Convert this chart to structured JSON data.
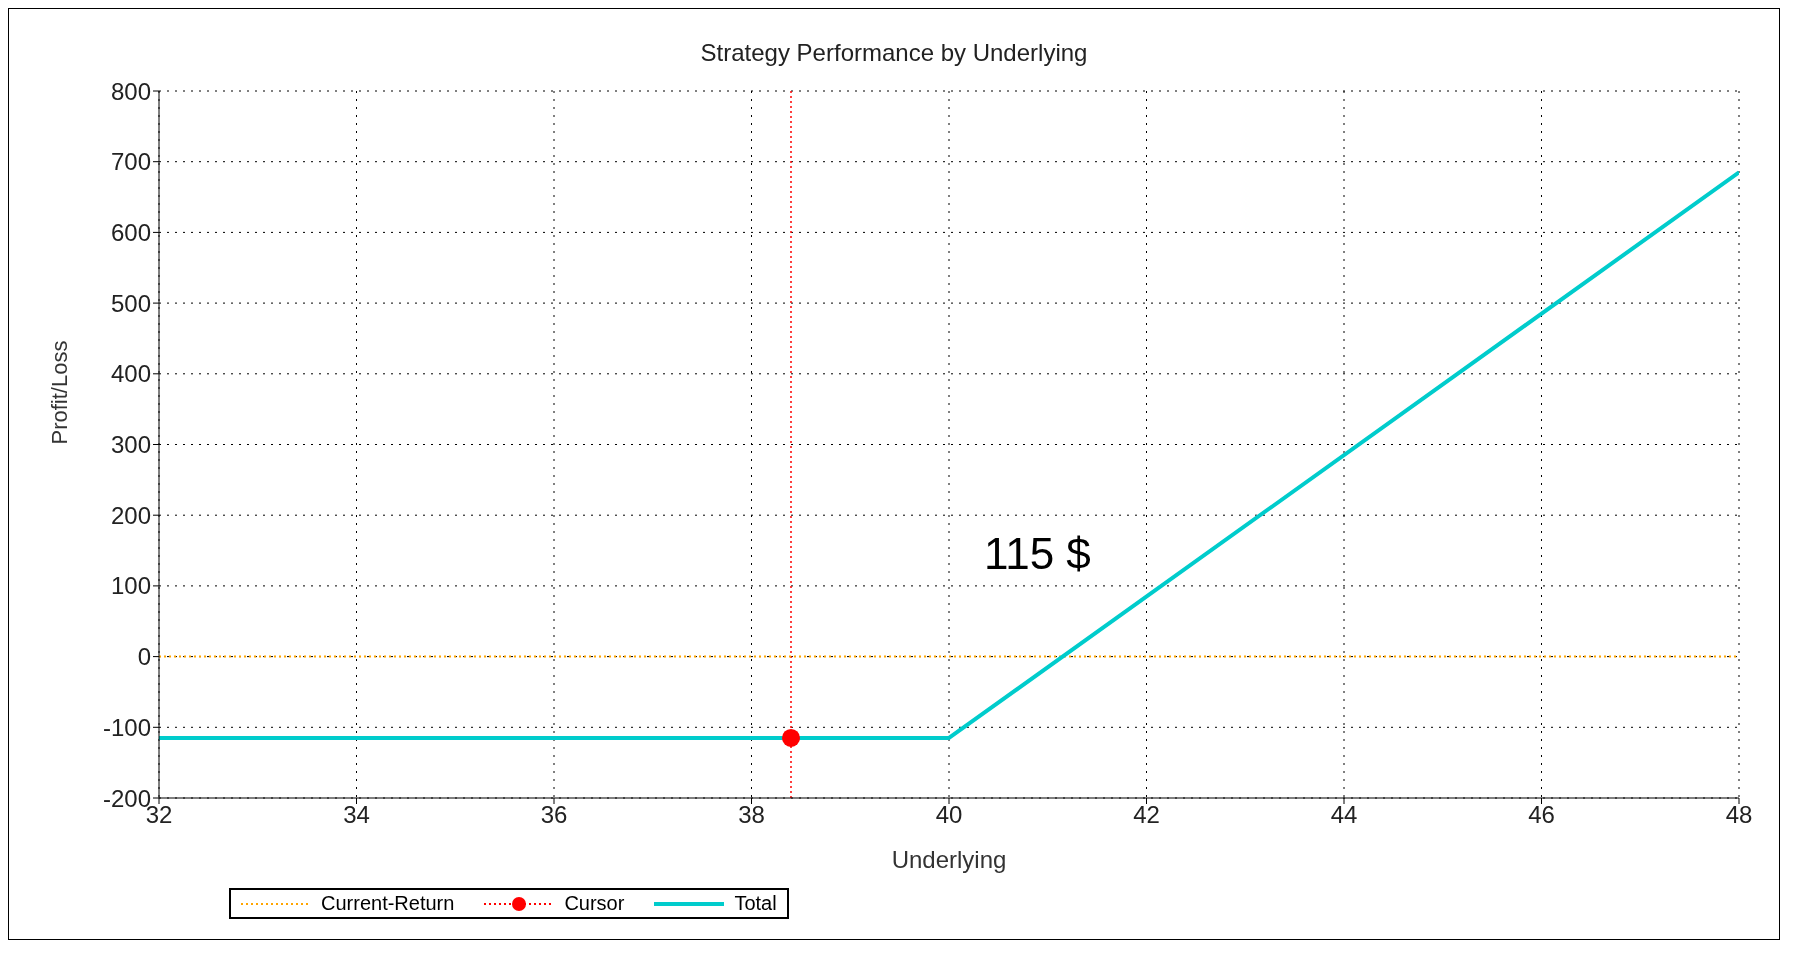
{
  "chart_data": {
    "type": "line",
    "title": "Strategy Performance by Underlying",
    "xlabel": "Underlying",
    "ylabel": "Profit/Loss",
    "xlim": [
      32,
      48
    ],
    "xticks": [
      32,
      34,
      36,
      38,
      40,
      42,
      44,
      46,
      48
    ],
    "ylim": [
      -200,
      800
    ],
    "yticks": [
      -200,
      -100,
      0,
      100,
      200,
      300,
      400,
      500,
      600,
      700,
      800
    ],
    "grid": true,
    "legend": "bottom",
    "marker": "none",
    "series": [
      {
        "name": "Current-Return",
        "color": "#ffa500",
        "line_style": "dotted",
        "x": [
          32,
          48
        ],
        "values": [
          0,
          0
        ]
      },
      {
        "name": "Cursor",
        "type": "scatter",
        "color": "#ff0000",
        "marker": "circle",
        "x": [
          38.4
        ],
        "values": [
          -115
        ]
      },
      {
        "name": "Total",
        "color": "#00cccc",
        "line_style": "solid",
        "x": [
          32,
          40,
          48
        ],
        "values": [
          -115,
          -115,
          685
        ]
      }
    ],
    "ref_lines": [
      {
        "axis": "x",
        "value": 38.4,
        "color": "#ff0000",
        "line_style": "dotted"
      }
    ],
    "annotations": [
      "115 $"
    ]
  }
}
